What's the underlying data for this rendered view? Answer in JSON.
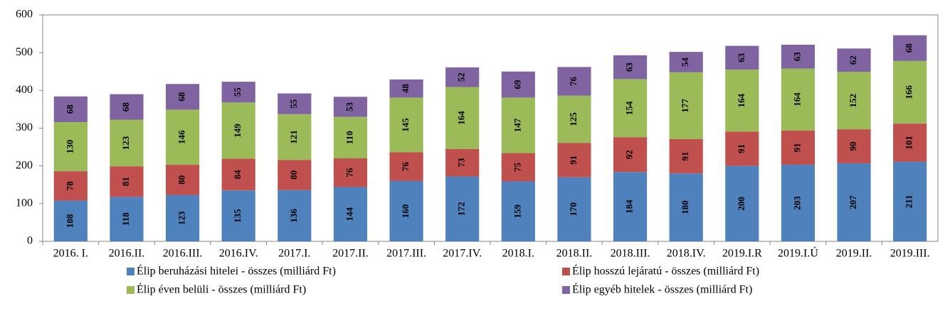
{
  "chart_data": {
    "type": "bar",
    "stacked": true,
    "categories": [
      "2016. I.",
      "2016.II.",
      "2016.III.",
      "2016.IV.",
      "2017.I.",
      "2017.II.",
      "2017.III.",
      "2017.IV.",
      "2018.I.",
      "2018.II.",
      "2018.III.",
      "2018.IV.",
      "2019.I.R",
      "2019.I.Ú",
      "2019.II.",
      "2019.III."
    ],
    "series": [
      {
        "name": "Élip beruházási hitelei - összes (milliárd Ft)",
        "color": "#4f81bd",
        "values": [
          108,
          118,
          123,
          135,
          136,
          144,
          160,
          172,
          159,
          170,
          184,
          180,
          200,
          203,
          207,
          211
        ]
      },
      {
        "name": "Élip hosszú lejáratú - összes (milliárd Ft)",
        "color": "#c0504d",
        "values": [
          78,
          81,
          80,
          84,
          80,
          76,
          76,
          73,
          75,
          91,
          92,
          91,
          91,
          91,
          90,
          101
        ]
      },
      {
        "name": "Élip éven belüli - összes (milliárd Ft)",
        "color": "#9bbb59",
        "values": [
          130,
          123,
          146,
          149,
          121,
          110,
          145,
          164,
          147,
          125,
          154,
          177,
          164,
          164,
          152,
          166
        ]
      },
      {
        "name": "Élip egyéb hitelek - összes (milliárd Ft)",
        "color": "#8064a2",
        "values": [
          68,
          68,
          68,
          55,
          55,
          53,
          48,
          52,
          69,
          76,
          63,
          54,
          63,
          63,
          62,
          68
        ]
      }
    ],
    "ylim": [
      0,
      600
    ],
    "yticks": [
      0,
      100,
      200,
      300,
      400,
      500,
      600
    ],
    "grid": false,
    "legend": "bottom"
  }
}
